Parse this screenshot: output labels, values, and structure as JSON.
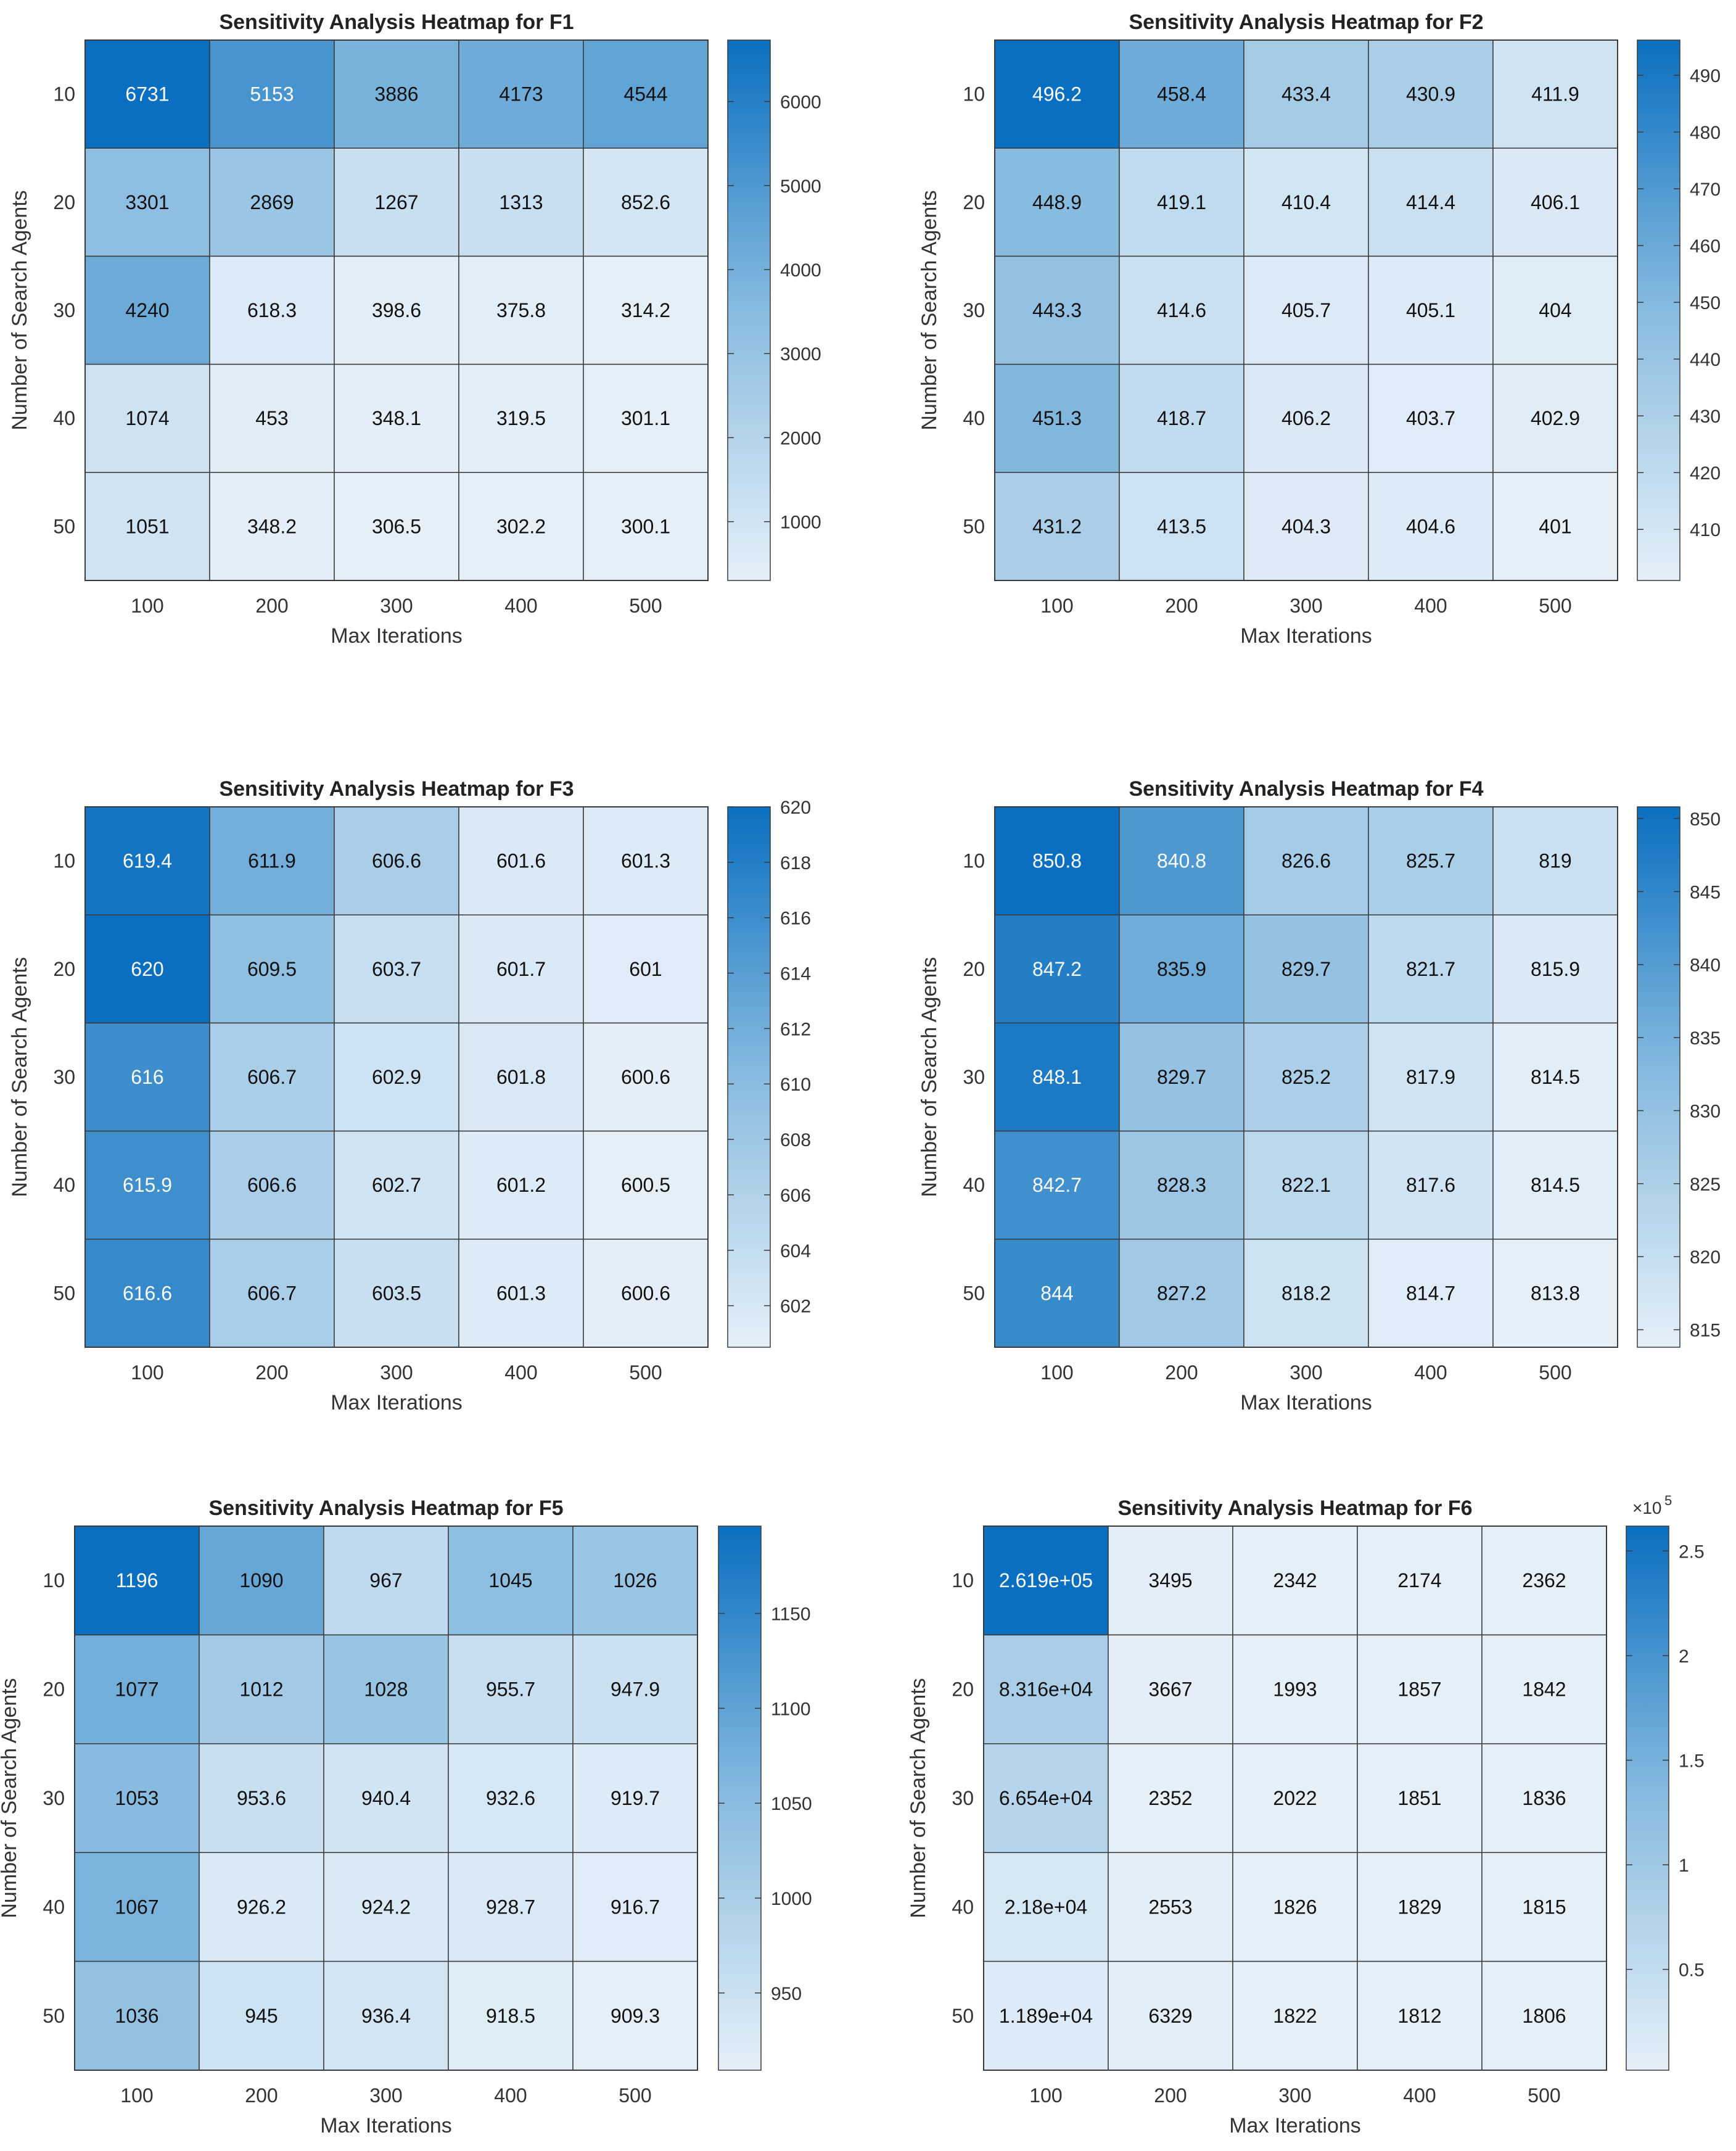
{
  "figure": {
    "xlabel": "Max Iterations",
    "ylabel": "Number of Search Agents",
    "x_ticks": [
      "100",
      "200",
      "300",
      "400",
      "500"
    ],
    "y_ticks": [
      "10",
      "20",
      "30",
      "40",
      "50"
    ],
    "colormap": {
      "low": "#e4eff8",
      "mid": "#88bbdf",
      "high": "#0a6fc0"
    }
  },
  "chart_data": [
    {
      "type": "heatmap",
      "title": "Sensitivity Analysis Heatmap for F1",
      "xlabel": "Max Iterations",
      "ylabel": "Number of Search Agents",
      "x": [
        "100",
        "200",
        "300",
        "400",
        "500"
      ],
      "y": [
        "10",
        "20",
        "30",
        "40",
        "50"
      ],
      "values": [
        [
          6731,
          5153,
          3886,
          4173,
          4544
        ],
        [
          3301,
          2869,
          1267,
          1313,
          852.6
        ],
        [
          4240,
          618.3,
          398.6,
          375.8,
          314.2
        ],
        [
          1074,
          453,
          348.1,
          319.5,
          301.1
        ],
        [
          1051,
          348.2,
          306.5,
          302.2,
          300.1
        ]
      ],
      "labels": [
        [
          "6731",
          "5153",
          "3886",
          "4173",
          "4544"
        ],
        [
          "3301",
          "2869",
          "1267",
          "1313",
          "852.6"
        ],
        [
          "4240",
          "618.3",
          "398.6",
          "375.8",
          "314.2"
        ],
        [
          "1074",
          "453",
          "348.1",
          "319.5",
          "301.1"
        ],
        [
          "1051",
          "348.2",
          "306.5",
          "302.2",
          "300.1"
        ]
      ],
      "colorbar": {
        "ticks": [
          1000,
          2000,
          3000,
          4000,
          5000,
          6000
        ],
        "tick_labels": [
          "1000",
          "2000",
          "3000",
          "4000",
          "5000",
          "6000"
        ],
        "exponent": null
      }
    },
    {
      "type": "heatmap",
      "title": "Sensitivity Analysis Heatmap for F2",
      "xlabel": "Max Iterations",
      "ylabel": "Number of Search Agents",
      "x": [
        "100",
        "200",
        "300",
        "400",
        "500"
      ],
      "y": [
        "10",
        "20",
        "30",
        "40",
        "50"
      ],
      "values": [
        [
          496.2,
          458.4,
          433.4,
          430.9,
          411.9
        ],
        [
          448.9,
          419.1,
          410.4,
          414.4,
          406.1
        ],
        [
          443.3,
          414.6,
          405.7,
          405.1,
          404
        ],
        [
          451.3,
          418.7,
          406.2,
          403.7,
          402.9
        ],
        [
          431.2,
          413.5,
          404.3,
          404.6,
          401
        ]
      ],
      "labels": [
        [
          "496.2",
          "458.4",
          "433.4",
          "430.9",
          "411.9"
        ],
        [
          "448.9",
          "419.1",
          "410.4",
          "414.4",
          "406.1"
        ],
        [
          "443.3",
          "414.6",
          "405.7",
          "405.1",
          "404"
        ],
        [
          "451.3",
          "418.7",
          "406.2",
          "403.7",
          "402.9"
        ],
        [
          "431.2",
          "413.5",
          "404.3",
          "404.6",
          "401"
        ]
      ],
      "colorbar": {
        "ticks": [
          410,
          420,
          430,
          440,
          450,
          460,
          470,
          480,
          490
        ],
        "tick_labels": [
          "410",
          "420",
          "430",
          "440",
          "450",
          "460",
          "470",
          "480",
          "490"
        ],
        "exponent": null
      }
    },
    {
      "type": "heatmap",
      "title": "Sensitivity Analysis Heatmap for F3",
      "xlabel": "Max Iterations",
      "ylabel": "Number of Search Agents",
      "x": [
        "100",
        "200",
        "300",
        "400",
        "500"
      ],
      "y": [
        "10",
        "20",
        "30",
        "40",
        "50"
      ],
      "values": [
        [
          619.4,
          611.9,
          606.6,
          601.6,
          601.3
        ],
        [
          620,
          609.5,
          603.7,
          601.7,
          601
        ],
        [
          616,
          606.7,
          602.9,
          601.8,
          600.6
        ],
        [
          615.9,
          606.6,
          602.7,
          601.2,
          600.5
        ],
        [
          616.6,
          606.7,
          603.5,
          601.3,
          600.6
        ]
      ],
      "labels": [
        [
          "619.4",
          "611.9",
          "606.6",
          "601.6",
          "601.3"
        ],
        [
          "620",
          "609.5",
          "603.7",
          "601.7",
          "601"
        ],
        [
          "616",
          "606.7",
          "602.9",
          "601.8",
          "600.6"
        ],
        [
          "615.9",
          "606.6",
          "602.7",
          "601.2",
          "600.5"
        ],
        [
          "616.6",
          "606.7",
          "603.5",
          "601.3",
          "600.6"
        ]
      ],
      "colorbar": {
        "ticks": [
          602,
          604,
          606,
          608,
          610,
          612,
          614,
          616,
          618,
          620
        ],
        "tick_labels": [
          "602",
          "604",
          "606",
          "608",
          "610",
          "612",
          "614",
          "616",
          "618",
          "620"
        ],
        "exponent": null
      }
    },
    {
      "type": "heatmap",
      "title": "Sensitivity Analysis Heatmap for F4",
      "xlabel": "Max Iterations",
      "ylabel": "Number of Search Agents",
      "x": [
        "100",
        "200",
        "300",
        "400",
        "500"
      ],
      "y": [
        "10",
        "20",
        "30",
        "40",
        "50"
      ],
      "values": [
        [
          850.8,
          840.8,
          826.6,
          825.7,
          819
        ],
        [
          847.2,
          835.9,
          829.7,
          821.7,
          815.9
        ],
        [
          848.1,
          829.7,
          825.2,
          817.9,
          814.5
        ],
        [
          842.7,
          828.3,
          822.1,
          817.6,
          814.5
        ],
        [
          844,
          827.2,
          818.2,
          814.7,
          813.8
        ]
      ],
      "labels": [
        [
          "850.8",
          "840.8",
          "826.6",
          "825.7",
          "819"
        ],
        [
          "847.2",
          "835.9",
          "829.7",
          "821.7",
          "815.9"
        ],
        [
          "848.1",
          "829.7",
          "825.2",
          "817.9",
          "814.5"
        ],
        [
          "842.7",
          "828.3",
          "822.1",
          "817.6",
          "814.5"
        ],
        [
          "844",
          "827.2",
          "818.2",
          "814.7",
          "813.8"
        ]
      ],
      "colorbar": {
        "ticks": [
          815,
          820,
          825,
          830,
          835,
          840,
          845,
          850
        ],
        "tick_labels": [
          "815",
          "820",
          "825",
          "830",
          "835",
          "840",
          "845",
          "850"
        ],
        "exponent": null
      }
    },
    {
      "type": "heatmap",
      "title": "Sensitivity Analysis Heatmap for F5",
      "xlabel": "Max Iterations",
      "ylabel": "Number of Search Agents",
      "x": [
        "100",
        "200",
        "300",
        "400",
        "500"
      ],
      "y": [
        "10",
        "20",
        "30",
        "40",
        "50"
      ],
      "values": [
        [
          1196,
          1090,
          967,
          1045,
          1026
        ],
        [
          1077,
          1012,
          1028,
          955.7,
          947.9
        ],
        [
          1053,
          953.6,
          940.4,
          932.6,
          919.7
        ],
        [
          1067,
          926.2,
          924.2,
          928.7,
          916.7
        ],
        [
          1036,
          945,
          936.4,
          918.5,
          909.3
        ]
      ],
      "labels": [
        [
          "1196",
          "1090",
          "967",
          "1045",
          "1026"
        ],
        [
          "1077",
          "1012",
          "1028",
          "955.7",
          "947.9"
        ],
        [
          "1053",
          "953.6",
          "940.4",
          "932.6",
          "919.7"
        ],
        [
          "1067",
          "926.2",
          "924.2",
          "928.7",
          "916.7"
        ],
        [
          "1036",
          "945",
          "936.4",
          "918.5",
          "909.3"
        ]
      ],
      "colorbar": {
        "ticks": [
          950,
          1000,
          1050,
          1100,
          1150
        ],
        "tick_labels": [
          "950",
          "1000",
          "1050",
          "1100",
          "1150"
        ],
        "exponent": null
      }
    },
    {
      "type": "heatmap",
      "title": "Sensitivity Analysis Heatmap for F6",
      "xlabel": "Max Iterations",
      "ylabel": "Number of Search Agents",
      "x": [
        "100",
        "200",
        "300",
        "400",
        "500"
      ],
      "y": [
        "10",
        "20",
        "30",
        "40",
        "50"
      ],
      "values": [
        [
          261900,
          3495,
          2342,
          2174,
          2362
        ],
        [
          83160,
          3667,
          1993,
          1857,
          1842
        ],
        [
          66540,
          2352,
          2022,
          1851,
          1836
        ],
        [
          21800,
          2553,
          1826,
          1829,
          1815
        ],
        [
          11890,
          6329,
          1822,
          1812,
          1806
        ]
      ],
      "labels": [
        [
          "2.619e+05",
          "3495",
          "2342",
          "2174",
          "2362"
        ],
        [
          "8.316e+04",
          "3667",
          "1993",
          "1857",
          "1842"
        ],
        [
          "6.654e+04",
          "2352",
          "2022",
          "1851",
          "1836"
        ],
        [
          "2.18e+04",
          "2553",
          "1826",
          "1829",
          "1815"
        ],
        [
          "1.189e+04",
          "6329",
          "1822",
          "1812",
          "1806"
        ]
      ],
      "colorbar": {
        "ticks": [
          50000,
          100000,
          150000,
          200000,
          250000
        ],
        "tick_labels": [
          "0.5",
          "1",
          "1.5",
          "2",
          "2.5"
        ],
        "exponent": {
          "base": "×10",
          "power": "5"
        }
      }
    }
  ]
}
